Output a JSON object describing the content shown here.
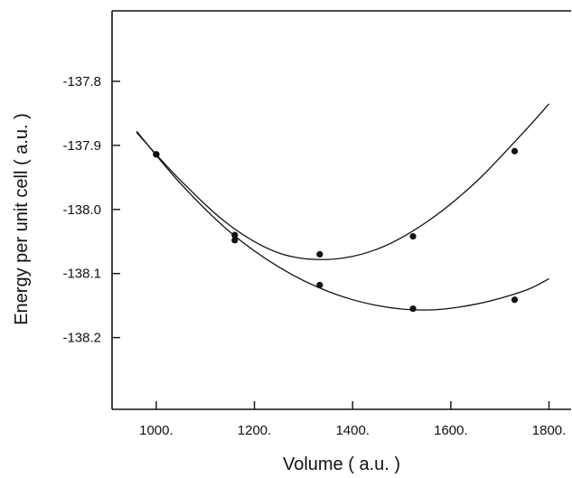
{
  "chart_data": {
    "type": "scatter",
    "title": "",
    "xlabel": "Volume ( a.u. )",
    "ylabel": "Energy per unit cell ( a.u. )",
    "xlim": [
      910,
      1845
    ],
    "ylim": [
      -138.312,
      -137.69
    ],
    "x_ticks": [
      1000,
      1200,
      1400,
      1600,
      1800
    ],
    "x_tick_labels": [
      "1000.",
      "1200.",
      "1400.",
      "1600.",
      "1800."
    ],
    "y_ticks": [
      -137.8,
      -137.9,
      -138.0,
      -138.1,
      -138.2
    ],
    "y_tick_labels": [
      "-137.8",
      "-137.9",
      "-138.0",
      "-138.1",
      "-138.2"
    ],
    "grid": false,
    "legend": "none",
    "series": [
      {
        "points": {
          "x": [
            1000,
            1160,
            1333,
            1523,
            1730
          ],
          "y": [
            -137.914,
            -138.04,
            -138.07,
            -138.042,
            -137.909
          ]
        },
        "fit_curve": {
          "x": [
            960,
            1050,
            1150,
            1250,
            1350,
            1450,
            1550,
            1650,
            1750,
            1800
          ],
          "y": [
            -137.88,
            -137.955,
            -138.025,
            -138.068,
            -138.078,
            -138.062,
            -138.02,
            -137.958,
            -137.878,
            -137.835
          ]
        }
      },
      {
        "points": {
          "x": [
            1000,
            1160,
            1333,
            1523,
            1730
          ],
          "y": [
            -137.914,
            -138.048,
            -138.118,
            -138.155,
            -138.141
          ]
        },
        "fit_curve": {
          "x": [
            960,
            1050,
            1150,
            1250,
            1350,
            1450,
            1550,
            1650,
            1750,
            1800
          ],
          "y": [
            -137.878,
            -137.96,
            -138.035,
            -138.09,
            -138.128,
            -138.15,
            -138.157,
            -138.148,
            -138.127,
            -138.108
          ]
        }
      }
    ]
  }
}
